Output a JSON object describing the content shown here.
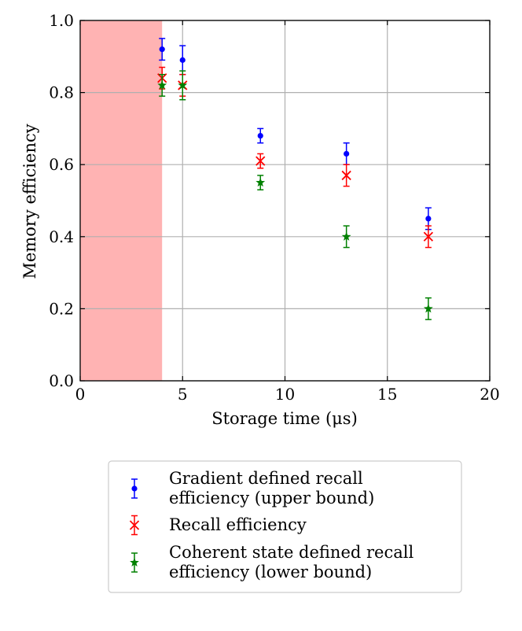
{
  "chart_data": {
    "type": "scatter",
    "title": "",
    "xlabel": "Storage time (μs)",
    "ylabel": "Memory efficiency",
    "xlim": [
      0,
      20
    ],
    "ylim": [
      0,
      1.0
    ],
    "xticks": [
      0,
      5,
      10,
      15,
      20
    ],
    "xtick_labels": [
      "0",
      "5",
      "10",
      "15",
      "20"
    ],
    "yticks": [
      0.0,
      0.2,
      0.4,
      0.6,
      0.8,
      1.0
    ],
    "ytick_labels": [
      "0.0",
      "0.2",
      "0.4",
      "0.6",
      "0.8",
      "1.0"
    ],
    "grid": true,
    "shaded_region": {
      "x_start": 0,
      "x_end": 4,
      "color": "#ffb3b3"
    },
    "legend_position": "below plot",
    "series": [
      {
        "name": "gradient",
        "legend_lines": [
          "Gradient defined recall",
          "efficiency (upper bound)"
        ],
        "marker": "dot",
        "color": "#0000ff",
        "x": [
          4,
          5,
          8.8,
          13,
          17
        ],
        "y": [
          0.92,
          0.89,
          0.68,
          0.63,
          0.45
        ],
        "err": [
          0.03,
          0.04,
          0.02,
          0.03,
          0.03
        ]
      },
      {
        "name": "recall",
        "legend_lines": [
          "Recall efficiency"
        ],
        "marker": "x",
        "color": "#ff0000",
        "x": [
          4,
          5,
          8.8,
          13,
          17
        ],
        "y": [
          0.84,
          0.82,
          0.61,
          0.57,
          0.4
        ],
        "err": [
          0.03,
          0.03,
          0.02,
          0.03,
          0.03
        ]
      },
      {
        "name": "coherent",
        "legend_lines": [
          "Coherent state defined recall",
          "efficiency (lower bound)"
        ],
        "marker": "star",
        "color": "#008000",
        "x": [
          4,
          5,
          8.8,
          13,
          17
        ],
        "y": [
          0.82,
          0.82,
          0.55,
          0.4,
          0.2
        ],
        "err": [
          0.03,
          0.04,
          0.02,
          0.03,
          0.03
        ]
      }
    ]
  }
}
